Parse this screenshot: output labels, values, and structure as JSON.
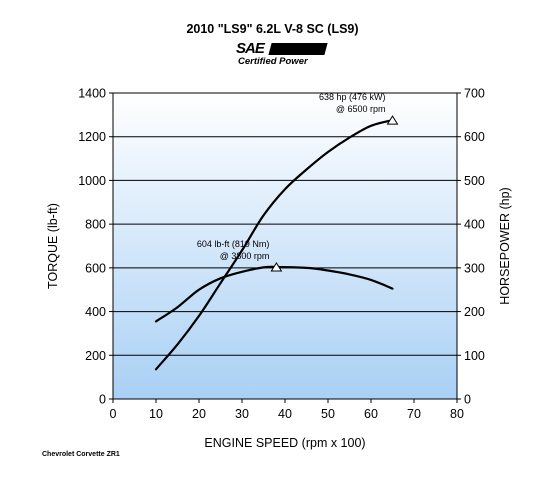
{
  "title": "2010 \"LS9\" 6.2L V-8 SC (LS9)",
  "badge": {
    "line1": "SAE",
    "line2": "Certified Power"
  },
  "footnote": "Chevrolet Corvette ZR1",
  "colors": {
    "plot_top": "#ffffff",
    "plot_bottom": "#a9d0f5",
    "line": "#000000"
  },
  "chart_data": {
    "type": "line",
    "xlabel": "ENGINE SPEED (rpm x 100)",
    "ylabel": "TORQUE (lb-ft)",
    "y2label": "HORSEPOWER (hp)",
    "xlim": [
      0,
      80
    ],
    "ylim": [
      0,
      1400
    ],
    "y2lim": [
      0,
      700
    ],
    "xticks": [
      0,
      10,
      20,
      30,
      40,
      50,
      60,
      70,
      80
    ],
    "yticks": [
      0,
      200,
      400,
      600,
      800,
      1000,
      1200,
      1400
    ],
    "y2ticks": [
      0,
      100,
      200,
      300,
      400,
      500,
      600,
      700
    ],
    "grid": "horizontal",
    "series": [
      {
        "axis": "left",
        "x": [
          10,
          15,
          20,
          25,
          30,
          35,
          38,
          45,
          50,
          55,
          60,
          65
        ],
        "values": [
          355,
          420,
          500,
          552,
          582,
          602,
          604,
          600,
          588,
          570,
          545,
          505
        ]
      },
      {
        "axis": "right",
        "x": [
          10,
          15,
          20,
          25,
          30,
          35,
          40,
          45,
          50,
          55,
          60,
          65
        ],
        "values": [
          68,
          125,
          190,
          265,
          340,
          420,
          480,
          525,
          565,
          598,
          625,
          638
        ]
      }
    ],
    "annotations": [
      {
        "line1": "638 hp (476 kW)",
        "line2": "@ 6500 rpm",
        "x": 65,
        "y_right": 638
      },
      {
        "line1": "604 lb-ft (819 Nm)",
        "line2": "@ 3800 rpm",
        "x": 38,
        "y_left": 604
      }
    ]
  }
}
